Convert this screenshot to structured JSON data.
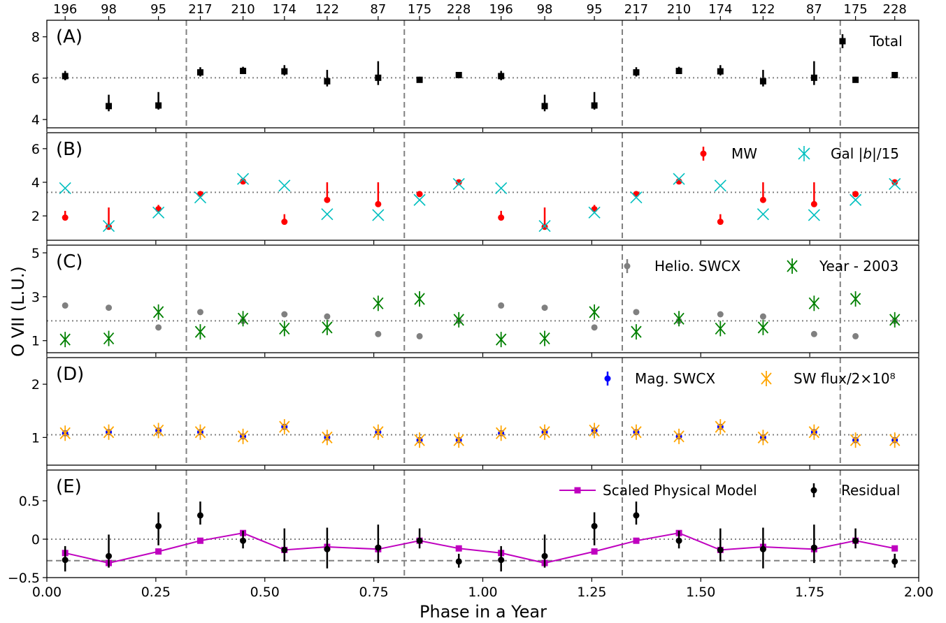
{
  "figure": {
    "ylabel": "O VII (L.U.)",
    "xlabel": "Phase in a Year",
    "x_tick_labels": [
      "0.00",
      "0.25",
      "0.50",
      "0.75",
      "1.00",
      "1.25",
      "1.50",
      "1.75",
      "2.00"
    ],
    "top_tick_labels": [
      "196",
      "98",
      "95",
      "217",
      "210",
      "174",
      "122",
      "87",
      "175",
      "228",
      "196",
      "98",
      "95",
      "217",
      "210",
      "174",
      "122",
      "87",
      "175",
      "228"
    ]
  },
  "chart_data": {
    "type": "scatter",
    "xlim": [
      0,
      2
    ],
    "x_ticks": [
      0,
      0.25,
      0.5,
      0.75,
      1.0,
      1.25,
      1.5,
      1.75,
      2.0
    ],
    "phase": [
      0.042,
      0.142,
      0.256,
      0.352,
      0.45,
      0.545,
      0.643,
      0.76,
      0.855,
      0.945,
      1.042,
      1.142,
      1.256,
      1.352,
      1.45,
      1.545,
      1.643,
      1.76,
      1.855,
      1.945
    ],
    "top_axis_values": [
      196,
      98,
      95,
      217,
      210,
      174,
      122,
      87,
      175,
      228,
      196,
      98,
      95,
      217,
      210,
      174,
      122,
      87,
      175,
      228
    ],
    "vlines_x": [
      0.32,
      0.82,
      1.32,
      1.82
    ],
    "colors": {
      "total": "#000000",
      "mw": "#ff0000",
      "gal": "#00bfbf",
      "helio": "#808080",
      "year": "#008000",
      "mag": "#0000ff",
      "swflux": "#ffa500",
      "model": "#bf00bf",
      "residual": "#000000"
    },
    "panels": [
      {
        "label": "(A)",
        "ylim": [
          3.6,
          8.8
        ],
        "y_ticks": [
          4,
          6,
          8
        ],
        "y_tick_labels": [
          "4",
          "6",
          "8"
        ],
        "hline": 6.02,
        "legend": [
          "Total"
        ],
        "series": [
          {
            "name": "Total",
            "marker": "square",
            "color": "#000000",
            "values": [
              6.1,
              4.65,
              4.68,
              6.28,
              6.35,
              6.33,
              5.85,
              6.02,
              5.92,
              6.15,
              6.1,
              4.65,
              4.68,
              6.28,
              6.35,
              6.33,
              5.85,
              6.02,
              5.92,
              6.15
            ],
            "err_low": [
              0.2,
              0.25,
              0.2,
              0.2,
              0.15,
              0.2,
              0.25,
              0.35,
              0.12,
              0.12,
              0.2,
              0.25,
              0.2,
              0.2,
              0.15,
              0.2,
              0.25,
              0.35,
              0.12,
              0.12
            ],
            "err_high": [
              0.25,
              0.55,
              0.65,
              0.25,
              0.2,
              0.3,
              0.55,
              0.8,
              0.15,
              0.15,
              0.25,
              0.55,
              0.65,
              0.25,
              0.2,
              0.3,
              0.55,
              0.8,
              0.15,
              0.15
            ]
          }
        ]
      },
      {
        "label": "(B)",
        "ylim": [
          0.55,
          6.95
        ],
        "y_ticks": [
          2,
          4,
          6
        ],
        "y_tick_labels": [
          "2",
          "4",
          "6"
        ],
        "hline": 3.4,
        "legend": [
          "MW",
          "Gal |b|/15"
        ],
        "series": [
          {
            "name": "MW",
            "marker": "circle",
            "color": "#ff0000",
            "values": [
              1.9,
              1.35,
              2.4,
              3.3,
              4.05,
              1.65,
              2.95,
              2.7,
              3.3,
              4.0,
              1.9,
              1.35,
              2.4,
              3.3,
              4.05,
              1.65,
              2.95,
              2.7,
              3.3,
              4.0
            ],
            "err_low": [
              0.1,
              0.1,
              0.1,
              0.1,
              0.1,
              0.1,
              0.1,
              0.1,
              0.1,
              0.1,
              0.1,
              0.1,
              0.1,
              0.1,
              0.1,
              0.1,
              0.1,
              0.1,
              0.1,
              0.1
            ],
            "err_high": [
              0.4,
              1.15,
              0.25,
              0.1,
              0.1,
              0.45,
              1.05,
              1.3,
              0.1,
              0.1,
              0.4,
              1.15,
              0.25,
              0.1,
              0.1,
              0.45,
              1.05,
              1.3,
              0.1,
              0.1
            ]
          },
          {
            "name": "Gal |b|/15",
            "marker": "x",
            "color": "#00bfbf",
            "values": [
              3.65,
              1.4,
              2.2,
              3.1,
              4.2,
              3.8,
              2.1,
              2.05,
              2.95,
              3.9,
              3.65,
              1.4,
              2.2,
              3.1,
              4.2,
              3.8,
              2.1,
              2.05,
              2.95,
              3.9
            ]
          }
        ]
      },
      {
        "label": "(C)",
        "ylim": [
          0.45,
          5.35
        ],
        "y_ticks": [
          1,
          3,
          5
        ],
        "y_tick_labels": [
          "1",
          "3",
          "5"
        ],
        "hline": 1.9,
        "legend": [
          "Helio. SWCX",
          "Year - 2003"
        ],
        "series": [
          {
            "name": "Helio. SWCX",
            "marker": "circle",
            "color": "#808080",
            "values": [
              2.6,
              2.5,
              1.6,
              2.3,
              1.9,
              2.2,
              2.1,
              1.3,
              1.2,
              1.9,
              2.6,
              2.5,
              1.6,
              2.3,
              1.9,
              2.2,
              2.1,
              1.3,
              1.2,
              1.9
            ]
          },
          {
            "name": "Year - 2003",
            "marker": "asterisk",
            "color": "#008000",
            "values": [
              1.05,
              1.1,
              2.3,
              1.4,
              2.0,
              1.55,
              1.6,
              2.7,
              2.9,
              1.95,
              1.05,
              1.1,
              2.3,
              1.4,
              2.0,
              1.55,
              1.6,
              2.7,
              2.9,
              1.95
            ]
          }
        ]
      },
      {
        "label": "(D)",
        "ylim": [
          0.48,
          2.5
        ],
        "y_ticks": [
          1,
          2
        ],
        "y_tick_labels": [
          "1",
          "2"
        ],
        "hline": 1.05,
        "legend": [
          "Mag. SWCX",
          "SW flux/2×10⁸"
        ],
        "series": [
          {
            "name": "Mag. SWCX",
            "marker": "circle",
            "color": "#0000ff",
            "values": [
              1.08,
              1.1,
              1.13,
              1.1,
              1.02,
              1.2,
              1.0,
              1.1,
              0.95,
              0.95,
              1.08,
              1.1,
              1.13,
              1.1,
              1.02,
              1.2,
              1.0,
              1.1,
              0.95,
              0.95
            ]
          },
          {
            "name": "SW flux/2×10⁸",
            "marker": "asterisk",
            "color": "#ffa500",
            "values": [
              1.08,
              1.1,
              1.13,
              1.1,
              1.02,
              1.2,
              1.0,
              1.1,
              0.95,
              0.95,
              1.08,
              1.1,
              1.13,
              1.1,
              1.02,
              1.2,
              1.0,
              1.1,
              0.95,
              0.95
            ]
          }
        ]
      },
      {
        "label": "(E)",
        "ylim": [
          -0.5,
          0.9
        ],
        "y_ticks": [
          -0.5,
          0,
          0.5
        ],
        "y_tick_labels": [
          "−0.5",
          "0",
          "0.5"
        ],
        "hline": 0,
        "hline2": -0.28,
        "legend": [
          "Scaled Physical Model",
          "Residual"
        ],
        "series": [
          {
            "name": "Scaled Physical Model",
            "marker": "square-line",
            "color": "#bf00bf",
            "values": [
              -0.18,
              -0.31,
              -0.16,
              -0.02,
              0.08,
              -0.14,
              -0.1,
              -0.13,
              -0.02,
              -0.12,
              -0.18,
              -0.31,
              -0.16,
              -0.02,
              0.08,
              -0.14,
              -0.1,
              -0.13,
              -0.02,
              -0.12
            ]
          },
          {
            "name": "Residual",
            "marker": "circle",
            "color": "#000000",
            "values": [
              -0.27,
              -0.22,
              0.17,
              0.31,
              -0.02,
              -0.14,
              -0.13,
              -0.11,
              -0.02,
              -0.29,
              -0.27,
              -0.22,
              0.17,
              0.31,
              -0.02,
              -0.14,
              -0.13,
              -0.11,
              -0.02,
              -0.29
            ],
            "err_low": [
              0.15,
              0.15,
              0.25,
              0.12,
              0.1,
              0.15,
              0.25,
              0.2,
              0.1,
              0.08,
              0.15,
              0.15,
              0.25,
              0.12,
              0.1,
              0.15,
              0.25,
              0.2,
              0.1,
              0.08
            ],
            "err_high": [
              0.18,
              0.28,
              0.18,
              0.18,
              0.13,
              0.28,
              0.28,
              0.3,
              0.16,
              0.1,
              0.18,
              0.28,
              0.18,
              0.18,
              0.13,
              0.28,
              0.28,
              0.3,
              0.16,
              0.1
            ]
          }
        ]
      }
    ]
  }
}
